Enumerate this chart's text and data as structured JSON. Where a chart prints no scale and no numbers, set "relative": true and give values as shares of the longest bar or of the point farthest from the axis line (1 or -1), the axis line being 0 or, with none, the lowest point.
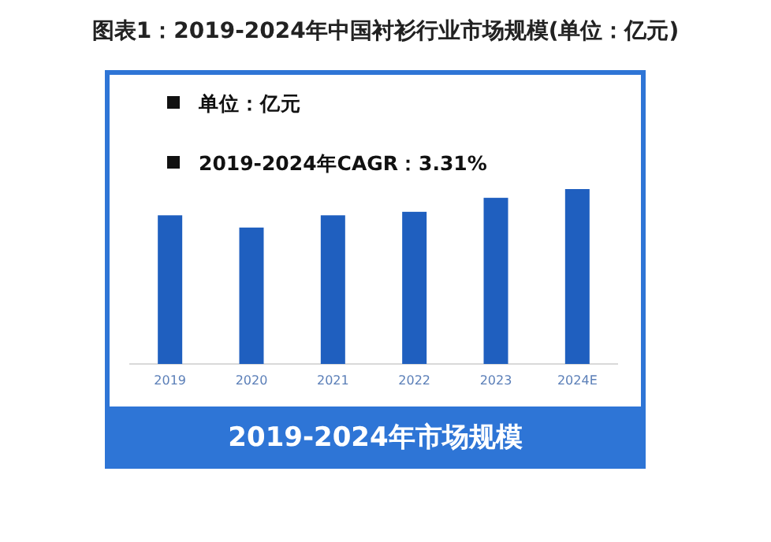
{
  "chart_data": {
    "type": "bar",
    "title": "图表1：2019-2024年中国衬衫行业市场规模(单位：亿元)",
    "categories": [
      "2019",
      "2020",
      "2021",
      "2022",
      "2023",
      "2024E"
    ],
    "values": [
      0.85,
      0.78,
      0.85,
      0.87,
      0.95,
      1
    ],
    "color": "#1f5fbf",
    "relative": true,
    "annotations": [
      "单位：亿元",
      "2019-2024年CAGR：3.31%",
      "2019-2024年市场规模"
    ]
  }
}
